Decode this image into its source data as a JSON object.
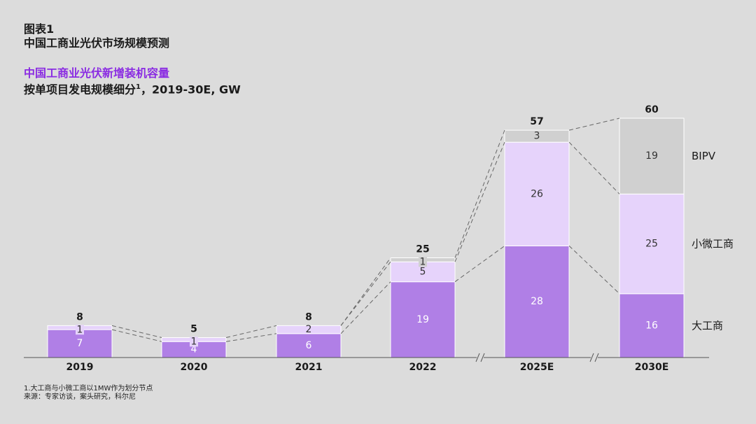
{
  "header": {
    "figure_label": "图表1",
    "figure_title": "中国工商业光伏市场规模预测",
    "chart_title": "中国工商业光伏新增装机容量",
    "subtitle_main": "按单项目发电规模细分",
    "subtitle_sup": "1",
    "subtitle_tail": "，2019-30E, GW"
  },
  "footnotes": {
    "note": "1.大工商与小微工商以1MW作为划分节点",
    "source": "来源：专家访谈，案头研究，科尔尼"
  },
  "chart_data": {
    "type": "bar",
    "stacked": true,
    "categories": [
      "2019",
      "2020",
      "2021",
      "2022",
      "2025E",
      "2030E"
    ],
    "series": [
      {
        "name": "大工商",
        "values": [
          7,
          4,
          6,
          19,
          28,
          16
        ],
        "color": "#b07fe6",
        "label_color": "#ffffff"
      },
      {
        "name": "小微工商",
        "values": [
          1,
          1,
          2,
          5,
          26,
          25
        ],
        "color": "#e6d3fb",
        "label_color": "#333333"
      },
      {
        "name": "BIPV",
        "values": [
          0,
          0,
          0,
          1,
          3,
          19
        ],
        "color": "#d0d0d0",
        "label_color": "#333333"
      }
    ],
    "totals": [
      8,
      5,
      8,
      25,
      57,
      60
    ],
    "axis_breaks": [
      "2022-2025E",
      "2025E-2030E"
    ],
    "legend": "right, next to last bar",
    "ylim": [
      0,
      65
    ],
    "grid": false
  }
}
